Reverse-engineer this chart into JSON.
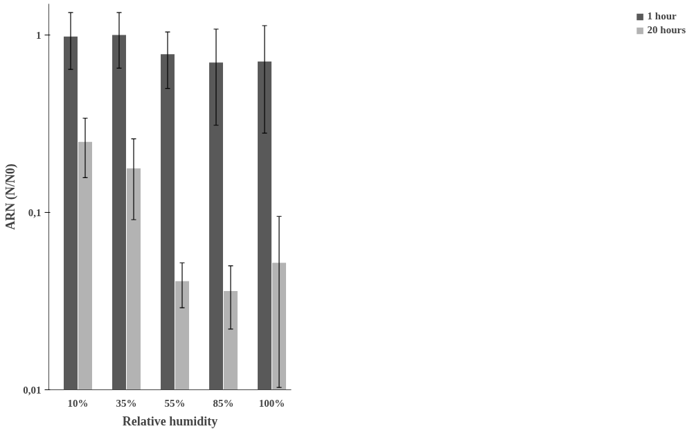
{
  "chart_data": {
    "type": "bar",
    "xlabel": "Relative humidity",
    "ylabel": "ARN (N/N0)",
    "categories": [
      "10%",
      "35%",
      "55%",
      "85%",
      "100%"
    ],
    "series": [
      {
        "name": "1 hour",
        "color": "#595959",
        "values": [
          0.98,
          1.0,
          0.78,
          0.7,
          0.71
        ],
        "errors": [
          [
            0.64,
            1.34
          ],
          [
            0.65,
            1.34
          ],
          [
            0.5,
            1.04
          ],
          [
            0.31,
            1.08
          ],
          [
            0.28,
            1.13
          ]
        ]
      },
      {
        "name": "20 hours",
        "color": "#b3b3b3",
        "values": [
          0.25,
          0.177,
          0.041,
          0.036,
          0.052
        ],
        "errors": [
          [
            0.157,
            0.34
          ],
          [
            0.091,
            0.26
          ],
          [
            0.029,
            0.052
          ],
          [
            0.022,
            0.05
          ],
          [
            0.0103,
            0.095
          ]
        ]
      }
    ],
    "log": "y",
    "ylim": [
      0.01,
      1.5
    ],
    "yticks": [
      {
        "value": 0.01,
        "label": "0,01"
      },
      {
        "value": 0.1,
        "label": "0,1"
      },
      1
    ],
    "grid": false,
    "legend": "right"
  }
}
